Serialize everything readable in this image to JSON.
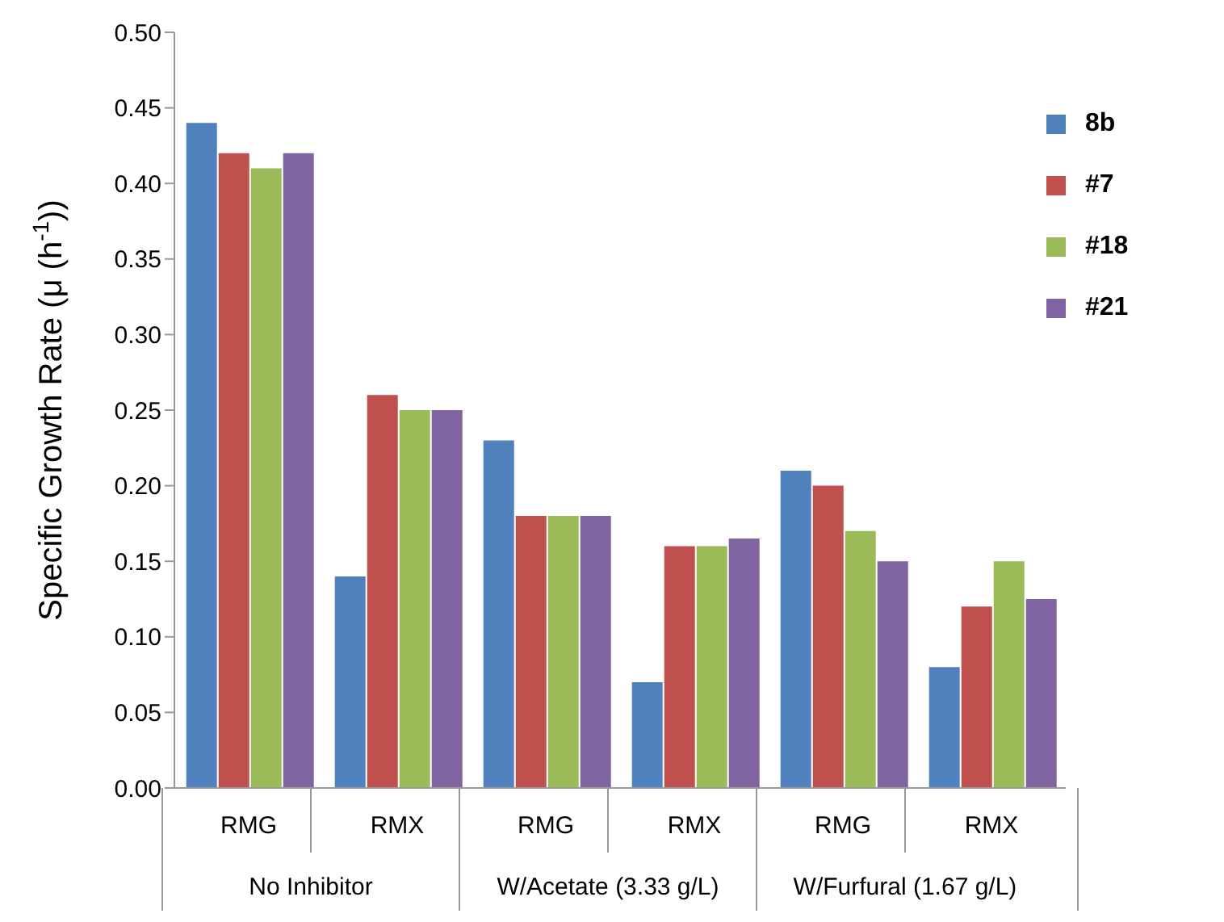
{
  "chart_data": {
    "type": "bar",
    "ylabel": "Specific Growth Rate (μ (h$^{-1}$))",
    "categories": [
      "RMG",
      "RMX",
      "RMG",
      "RMX",
      "RMG",
      "RMX"
    ],
    "annotations": [
      "No Inhibitor",
      "W/Acetate (3.33 g/L)",
      "W/Furfural (1.67 g/L)"
    ],
    "series": [
      {
        "name": "8b",
        "color": "#4f81bd",
        "values": [
          0.44,
          0.14,
          0.23,
          0.07,
          0.21,
          0.08
        ]
      },
      {
        "name": "#7",
        "color": "#c0504d",
        "values": [
          0.42,
          0.26,
          0.18,
          0.16,
          0.2,
          0.12
        ]
      },
      {
        "name": "#18",
        "color": "#9bbb59",
        "values": [
          0.41,
          0.25,
          0.18,
          0.16,
          0.17,
          0.15
        ]
      },
      {
        "name": "#21",
        "color": "#8064a2",
        "values": [
          0.42,
          0.25,
          0.18,
          0.165,
          0.15,
          0.125
        ]
      }
    ],
    "ylim": [
      0,
      0.5
    ],
    "yticks": [
      {
        "value": 0,
        "label": "0.00"
      },
      {
        "value": 0.05,
        "label": "0.05"
      },
      {
        "value": 0.1,
        "label": "0.10"
      },
      {
        "value": 0.15,
        "label": "0.15"
      },
      {
        "value": 0.2,
        "label": "0.20"
      },
      {
        "value": 0.25,
        "label": "0.25"
      },
      {
        "value": 0.3,
        "label": "0.30"
      },
      {
        "value": 0.35,
        "label": "0.35"
      },
      {
        "value": 0.4,
        "label": "0.40"
      },
      {
        "value": 0.45,
        "label": "0.45"
      },
      {
        "value": 0.5,
        "label": "0.50"
      }
    ],
    "legend": "top right",
    "grid": false
  }
}
